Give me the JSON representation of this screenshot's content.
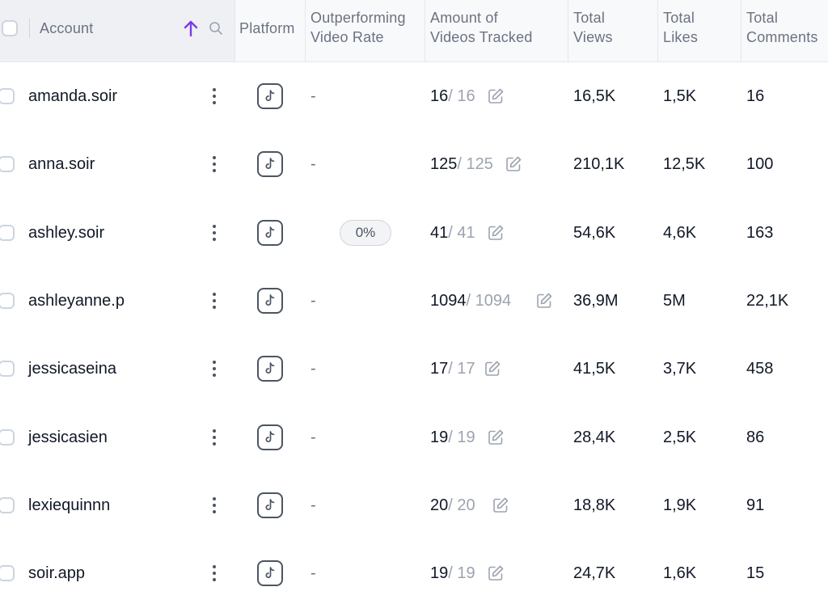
{
  "header": {
    "account": "Account",
    "platform": "Platform",
    "outperforming": [
      "Outperforming",
      "Video Rate"
    ],
    "tracked": [
      "Amount of",
      "Videos Tracked"
    ],
    "views": [
      "Total",
      "Views"
    ],
    "likes": [
      "Total",
      "Likes"
    ],
    "comments": [
      "Total",
      "Comments"
    ],
    "sort_icon": "arrow-up-icon",
    "search_icon": "search-icon",
    "accent_color": "#7c3aed"
  },
  "rows": [
    {
      "account": "amanda.soir",
      "rate": "-",
      "tracked": "16",
      "tracked_total": "/ 16",
      "views": "16,5K",
      "likes": "1,5K",
      "comments": "16"
    },
    {
      "account": "anna.soir",
      "rate": "-",
      "tracked": "125",
      "tracked_total": "/ 125",
      "views": "210,1K",
      "likes": "12,5K",
      "comments": "100"
    },
    {
      "account": "ashley.soir",
      "rate": "0%",
      "tracked": "41",
      "tracked_total": "/ 41",
      "views": "54,6K",
      "likes": "4,6K",
      "comments": "163"
    },
    {
      "account": "ashleyanne.p",
      "rate": "-",
      "tracked": "1094",
      "tracked_total": "/ 1094",
      "views": "36,9M",
      "likes": "5M",
      "comments": "22,1K"
    },
    {
      "account": "jessicaseina",
      "rate": "-",
      "tracked": "17",
      "tracked_total": "/ 17",
      "views": "41,5K",
      "likes": "3,7K",
      "comments": "458"
    },
    {
      "account": "jessicasien",
      "rate": "-",
      "tracked": "19",
      "tracked_total": "/ 19",
      "views": "28,4K",
      "likes": "2,5K",
      "comments": "86"
    },
    {
      "account": "lexiequinnn",
      "rate": "-",
      "tracked": "20",
      "tracked_total": "/ 20",
      "views": "18,8K",
      "likes": "1,9K",
      "comments": "91"
    },
    {
      "account": "soir.app",
      "rate": "-",
      "tracked": "19",
      "tracked_total": "/ 19",
      "views": "24,7K",
      "likes": "1,6K",
      "comments": "15"
    }
  ],
  "icons": {
    "platform": "tiktok-icon",
    "edit": "edit-icon",
    "menu": "kebab-menu-icon"
  }
}
